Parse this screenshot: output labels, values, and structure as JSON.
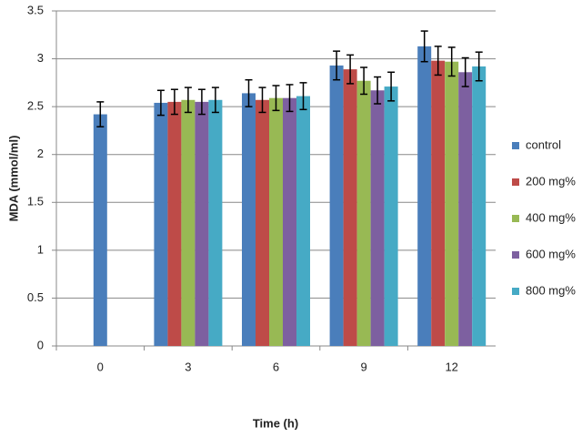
{
  "chart_data": {
    "type": "bar",
    "x_label": "Time (h)",
    "y_label": "MDA (mmol/ml)",
    "categories": [
      "0",
      "3",
      "6",
      "9",
      "12"
    ],
    "series": [
      {
        "name": "control",
        "color": "#4a7ebb",
        "values": [
          2.42,
          2.54,
          2.64,
          2.93,
          3.13
        ],
        "errors": [
          0.13,
          0.13,
          0.14,
          0.15,
          0.16
        ]
      },
      {
        "name": "200 mg%",
        "color": "#be4b48",
        "values": [
          null,
          2.55,
          2.57,
          2.89,
          2.98
        ],
        "errors": [
          null,
          0.13,
          0.13,
          0.15,
          0.15
        ]
      },
      {
        "name": "400 mg%",
        "color": "#98b954",
        "values": [
          null,
          2.57,
          2.59,
          2.77,
          2.97
        ],
        "errors": [
          null,
          0.13,
          0.13,
          0.14,
          0.15
        ]
      },
      {
        "name": "600 mg%",
        "color": "#7d60a0",
        "values": [
          null,
          2.55,
          2.59,
          2.67,
          2.86
        ],
        "errors": [
          null,
          0.13,
          0.14,
          0.14,
          0.15
        ]
      },
      {
        "name": "800 mg%",
        "color": "#46aac5",
        "values": [
          null,
          2.57,
          2.61,
          2.71,
          2.92
        ],
        "errors": [
          null,
          0.13,
          0.14,
          0.15,
          0.15
        ]
      }
    ],
    "ylim": [
      0,
      3.5
    ],
    "yticks": [
      0,
      0.5,
      1,
      1.5,
      2,
      2.5,
      3,
      3.5
    ],
    "grid": true,
    "legend": "right"
  }
}
